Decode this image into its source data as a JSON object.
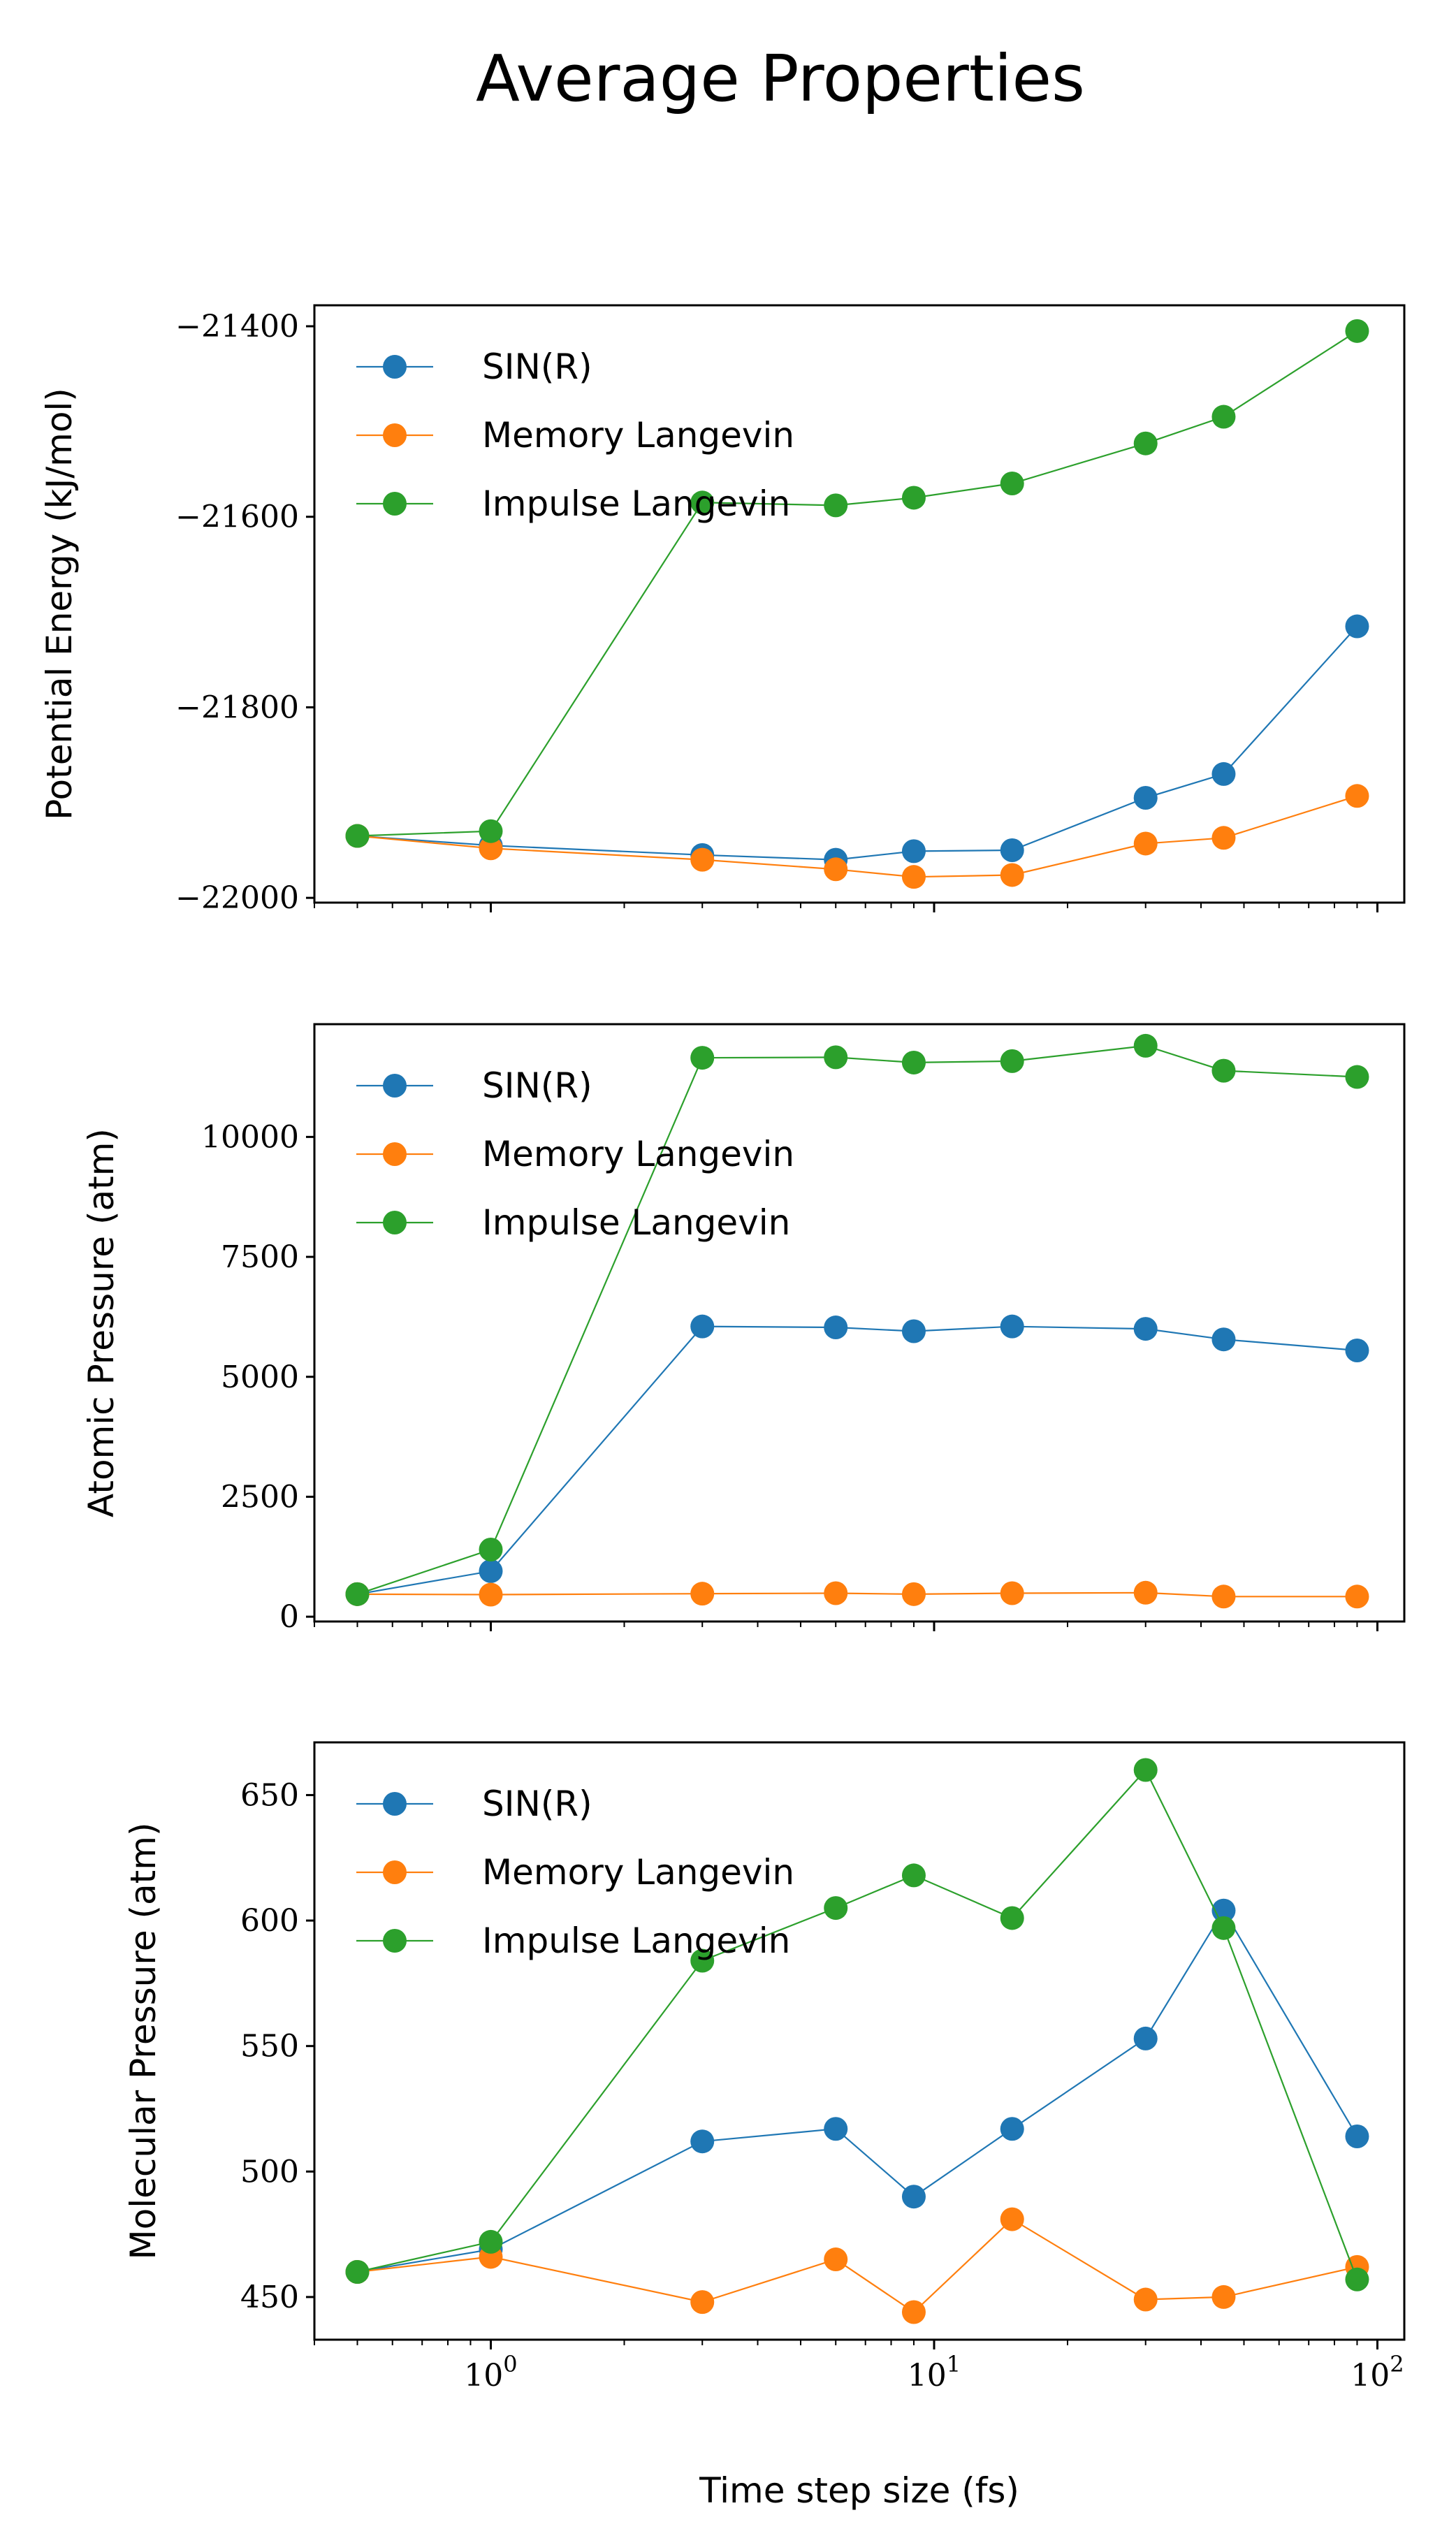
{
  "figure_title": "Average Properties",
  "chart_data": [
    {
      "type": "line",
      "ylabel": "Potential Energy (kJ/mol)",
      "xlabel": "",
      "xscale": "log",
      "xlim": [
        0.4,
        115
      ],
      "ylim": [
        -22005,
        -21378
      ],
      "yticks": [
        -21400,
        -21600,
        -21800,
        -22000
      ],
      "ytick_labels": [
        "−21400",
        "−21600",
        "−21800",
        "−22000"
      ],
      "show_xtick_labels": false,
      "legend": "upper left",
      "x": [
        0.5,
        1,
        3,
        6,
        9,
        15,
        30,
        45,
        90
      ],
      "series": [
        {
          "name": "SIN(R)",
          "color": "#1f77b4",
          "values": [
            -21935,
            -21945,
            -21955,
            -21960,
            -21951,
            -21950,
            -21895,
            -21870,
            -21715
          ]
        },
        {
          "name": "Memory Langevin",
          "color": "#ff7f0e",
          "values": [
            -21935,
            -21948,
            -21960,
            -21970,
            -21978,
            -21976,
            -21943,
            -21937,
            -21893
          ]
        },
        {
          "name": "Impulse Langevin",
          "color": "#2ca02c",
          "values": [
            -21935,
            -21930,
            -21585,
            -21588,
            -21580,
            -21565,
            -21523,
            -21495,
            -21405
          ]
        }
      ]
    },
    {
      "type": "line",
      "ylabel": "Atomic Pressure (atm)",
      "xlabel": "",
      "xscale": "log",
      "xlim": [
        0.4,
        115
      ],
      "ylim": [
        -100,
        12350
      ],
      "yticks": [
        0,
        2500,
        5000,
        7500,
        10000
      ],
      "ytick_labels": [
        "0",
        "2500",
        "5000",
        "7500",
        "10000"
      ],
      "show_xtick_labels": false,
      "legend": "upper left",
      "x": [
        0.5,
        1,
        3,
        6,
        9,
        15,
        30,
        45,
        90
      ],
      "series": [
        {
          "name": "SIN(R)",
          "color": "#1f77b4",
          "values": [
            470,
            950,
            6050,
            6030,
            5950,
            6050,
            6000,
            5780,
            5550
          ]
        },
        {
          "name": "Memory Langevin",
          "color": "#ff7f0e",
          "values": [
            470,
            460,
            480,
            490,
            470,
            490,
            500,
            420,
            420
          ]
        },
        {
          "name": "Impulse Langevin",
          "color": "#2ca02c",
          "values": [
            470,
            1400,
            11650,
            11660,
            11550,
            11580,
            11900,
            11380,
            11250
          ]
        }
      ]
    },
    {
      "type": "line",
      "ylabel": "Molecular Pressure (atm)",
      "xlabel": "Time step size (fs)",
      "xscale": "log",
      "xlim": [
        0.4,
        115
      ],
      "ylim": [
        433,
        671
      ],
      "yticks": [
        450,
        500,
        550,
        600,
        650
      ],
      "ytick_labels": [
        "450",
        "500",
        "550",
        "600",
        "650"
      ],
      "show_xtick_labels": true,
      "xticks": [
        1,
        10,
        100
      ],
      "xtick_labels": [
        {
          "base": "10",
          "exp": "0"
        },
        {
          "base": "10",
          "exp": "1"
        },
        {
          "base": "10",
          "exp": "2"
        }
      ],
      "legend": "upper left",
      "x": [
        0.5,
        1,
        3,
        6,
        9,
        15,
        30,
        45,
        90
      ],
      "series": [
        {
          "name": "SIN(R)",
          "color": "#1f77b4",
          "values": [
            460,
            469,
            512,
            517,
            490,
            517,
            553,
            604,
            514
          ]
        },
        {
          "name": "Memory Langevin",
          "color": "#ff7f0e",
          "values": [
            460,
            466,
            448,
            465,
            444,
            481,
            449,
            450,
            462
          ]
        },
        {
          "name": "Impulse Langevin",
          "color": "#2ca02c",
          "values": [
            460,
            472,
            584,
            605,
            618,
            601,
            660,
            597,
            457
          ]
        }
      ]
    }
  ]
}
